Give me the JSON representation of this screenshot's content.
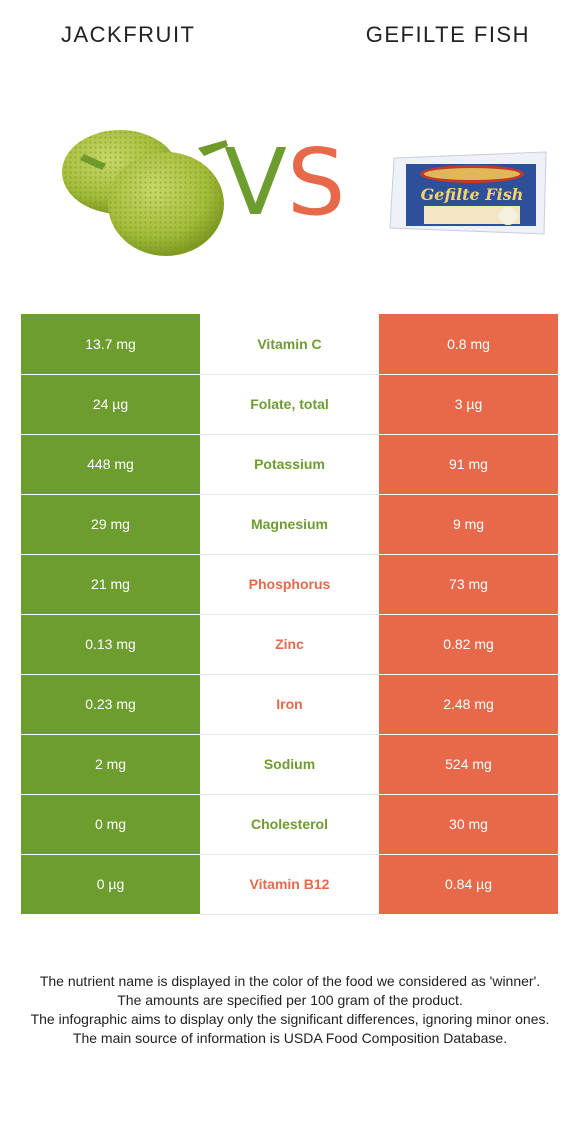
{
  "header": {
    "left_food": "JACKFRUIT",
    "right_food": "GEFILTE FISH",
    "vs_v": "V",
    "vs_s": "S"
  },
  "images": {
    "fish_package_text": "Gefilte Fish"
  },
  "colors": {
    "left_winner": "#6d9d2f",
    "right_winner": "#e8694a"
  },
  "rows": [
    {
      "left": "13.7 mg",
      "nutrient": "Vitamin C",
      "right": "0.8 mg",
      "winner": "left"
    },
    {
      "left": "24 µg",
      "nutrient": "Folate, total",
      "right": "3 µg",
      "winner": "left"
    },
    {
      "left": "448 mg",
      "nutrient": "Potassium",
      "right": "91 mg",
      "winner": "left"
    },
    {
      "left": "29 mg",
      "nutrient": "Magnesium",
      "right": "9 mg",
      "winner": "left"
    },
    {
      "left": "21 mg",
      "nutrient": "Phosphorus",
      "right": "73 mg",
      "winner": "right"
    },
    {
      "left": "0.13 mg",
      "nutrient": "Zinc",
      "right": "0.82 mg",
      "winner": "right"
    },
    {
      "left": "0.23 mg",
      "nutrient": "Iron",
      "right": "2.48 mg",
      "winner": "right"
    },
    {
      "left": "2 mg",
      "nutrient": "Sodium",
      "right": "524 mg",
      "winner": "left"
    },
    {
      "left": "0 mg",
      "nutrient": "Cholesterol",
      "right": "30 mg",
      "winner": "left"
    },
    {
      "left": "0 µg",
      "nutrient": "Vitamin B12",
      "right": "0.84 µg",
      "winner": "right"
    }
  ],
  "footnote": [
    "The nutrient name is displayed in the color of the food we considered as 'winner'.",
    "The amounts are specified per 100 gram of the product.",
    "The infographic aims to display only the significant differences, ignoring minor ones.",
    "The main source of information is USDA Food Composition Database."
  ]
}
